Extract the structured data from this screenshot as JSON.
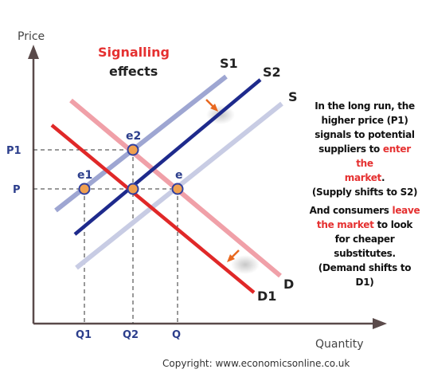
{
  "title": {
    "part1": "Signalling",
    "part2": "effects"
  },
  "axes": {
    "y_label": "Price",
    "x_label": "Quantity"
  },
  "price_ticks": {
    "p1": "P1",
    "p": "P"
  },
  "quantity_ticks": {
    "q1": "Q1",
    "q2": "Q2",
    "q": "Q"
  },
  "curves": {
    "s1": "S1",
    "s2": "S2",
    "s": "S",
    "d": "D",
    "d1": "D1"
  },
  "points": {
    "e": "e",
    "e1": "e1",
    "e2": "e2"
  },
  "notes": {
    "n1_l1": "In the long run, the",
    "n1_l2": "higher price (P1)",
    "n1_l3": "signals to potential",
    "n1_l4a": "suppliers to ",
    "n1_l4b": "enter the",
    "n1_l5": "market",
    "n1_l5b": ".",
    "n1_l6": "(Supply shifts to S2)",
    "n2_l1a": "And consumers ",
    "n2_l1b": "leave",
    "n2_l2a": "the market",
    "n2_l2b": " to look",
    "n2_l3": "for cheaper",
    "n2_l4": "substitutes.",
    "n2_l5": "(Demand shifts to D1)"
  },
  "copyright": "Copyright: www.economicsonline.co.uk",
  "colors": {
    "axis": "#5a4a4a",
    "s_light": "#c8cce4",
    "s1": "#9ea6d2",
    "s2": "#1e2a8c",
    "d_light": "#f0a0a8",
    "d1": "#e02828",
    "point_fill": "#f0a050",
    "point_stroke": "#3040a0",
    "arrow": "#e86820",
    "highlight": "#e53030"
  }
}
